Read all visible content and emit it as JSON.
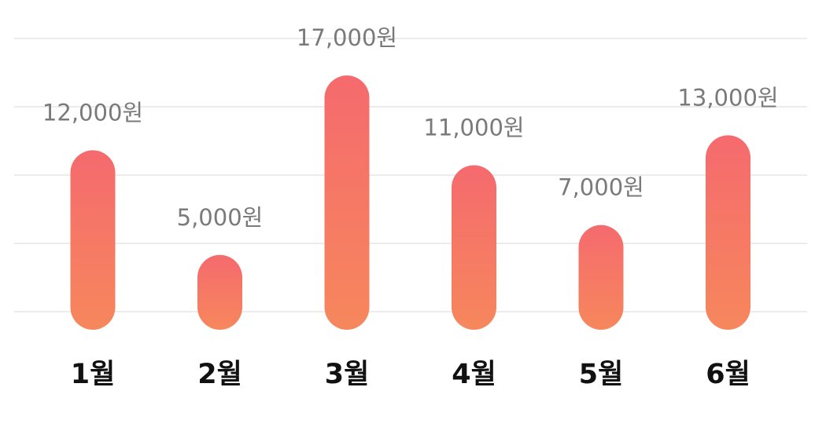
{
  "chart_data": {
    "type": "bar",
    "categories": [
      "1월",
      "2월",
      "3월",
      "4월",
      "5월",
      "6월"
    ],
    "values": [
      12000,
      5000,
      17000,
      11000,
      7000,
      13000
    ],
    "value_labels": [
      "12,000원",
      "5,000원",
      "17,000원",
      "11,000원",
      "7,000원",
      "13,000원"
    ],
    "title": "",
    "xlabel": "",
    "ylabel": "",
    "unit": "원",
    "ylim": [
      0,
      18000
    ],
    "grid": true,
    "legend": "none",
    "colors": {
      "bar_top": "#f56a6e",
      "bar_bottom": "#f6875c",
      "grid": "#ececec",
      "value_label": "#7a7a7a",
      "category_label": "#111111"
    }
  }
}
